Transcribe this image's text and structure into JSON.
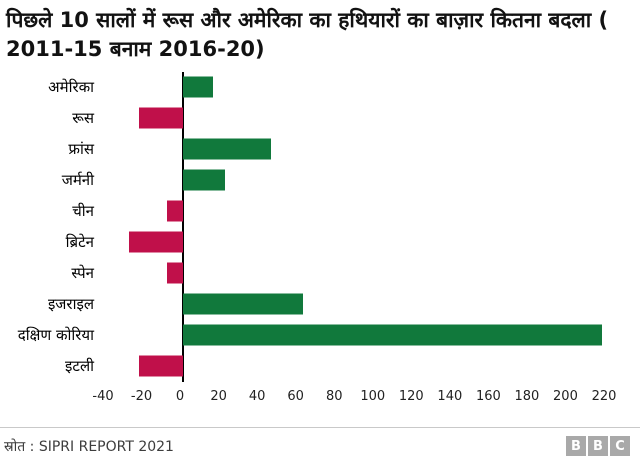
{
  "title": "पिछले 10 सालों में रूस और अमेरिका का हथियारों का बाज़ार कितना बदला ( 2011-15 बनाम 2016-20)",
  "chart_data": {
    "type": "bar",
    "orientation": "horizontal",
    "title": "पिछले 10 सालों में रूस और अमेरिका का हथियारों का बाज़ार कितना बदला ( 2011-15 बनाम 2016-20)",
    "categories": [
      "अमेरिका",
      "रूस",
      "फ्रांस",
      "जर्मनी",
      "चीन",
      "ब्रिटेन",
      "स्पेन",
      "इजराइल",
      "दक्षिण कोरिया",
      "इटली"
    ],
    "values": [
      15,
      -22,
      44,
      21,
      -8,
      -27,
      -8,
      60,
      210,
      -22
    ],
    "xlim": [
      -40,
      220
    ],
    "xticks": [
      -40,
      -20,
      0,
      20,
      40,
      60,
      80,
      100,
      120,
      140,
      160,
      180,
      200,
      220
    ],
    "xlabel": "",
    "ylabel": "",
    "grid": false,
    "legend": "none",
    "positive_color": "#11793c",
    "negative_color": "#c0104a",
    "axis_line_color": "#000000"
  },
  "footer": {
    "source": "स्रोत : SIPRI REPORT 2021",
    "logo_letters": [
      "B",
      "B",
      "C"
    ]
  }
}
